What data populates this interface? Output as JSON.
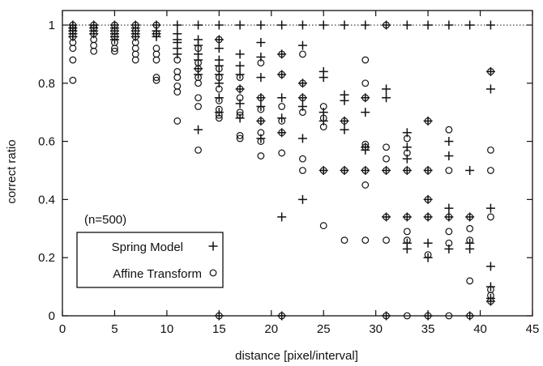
{
  "chart_data": {
    "type": "scatter",
    "xlabel": "distance [pixel/interval]",
    "ylabel": "correct ratio",
    "xlim": [
      0,
      45
    ],
    "ylim": [
      0,
      1.05
    ],
    "xticks": [
      0,
      5,
      10,
      15,
      20,
      25,
      30,
      35,
      40,
      45
    ],
    "yticks": [
      0,
      0.2,
      0.4,
      0.6,
      0.8,
      1
    ],
    "grid": false,
    "reference_line": {
      "y": 1,
      "style": "dotted"
    },
    "annotation": "(n=500)",
    "legend_position": "bottom-left",
    "series": [
      {
        "name": "Spring Model",
        "marker": "plus",
        "points": [
          [
            1,
            1
          ],
          [
            1,
            0.99
          ],
          [
            1,
            0.98
          ],
          [
            1,
            0.97
          ],
          [
            1,
            0.96
          ],
          [
            3,
            1
          ],
          [
            3,
            0.99
          ],
          [
            3,
            0.98
          ],
          [
            3,
            0.97
          ],
          [
            5,
            1
          ],
          [
            5,
            0.99
          ],
          [
            5,
            0.98
          ],
          [
            5,
            0.97
          ],
          [
            5,
            0.96
          ],
          [
            5,
            0.95
          ],
          [
            7,
            1
          ],
          [
            7,
            0.99
          ],
          [
            7,
            0.98
          ],
          [
            7,
            0.97
          ],
          [
            7,
            0.96
          ],
          [
            9,
            1
          ],
          [
            9,
            0.98
          ],
          [
            9,
            0.97
          ],
          [
            9,
            0.96
          ],
          [
            11,
            1
          ],
          [
            11,
            0.97
          ],
          [
            11,
            0.95
          ],
          [
            11,
            0.94
          ],
          [
            11,
            0.92
          ],
          [
            11,
            0.9
          ],
          [
            13,
            1
          ],
          [
            13,
            0.95
          ],
          [
            13,
            0.93
          ],
          [
            13,
            0.9
          ],
          [
            13,
            0.88
          ],
          [
            13,
            0.85
          ],
          [
            13,
            0.83
          ],
          [
            13,
            0.64
          ],
          [
            15,
            1
          ],
          [
            15,
            0.95
          ],
          [
            15,
            0.92
          ],
          [
            15,
            0.88
          ],
          [
            15,
            0.86
          ],
          [
            15,
            0.83
          ],
          [
            15,
            0.8
          ],
          [
            15,
            0.75
          ],
          [
            15,
            0.7
          ],
          [
            15,
            0
          ],
          [
            17,
            1
          ],
          [
            17,
            0.9
          ],
          [
            17,
            0.86
          ],
          [
            17,
            0.83
          ],
          [
            17,
            0.78
          ],
          [
            17,
            0.73
          ],
          [
            17,
            0.68
          ],
          [
            19,
            1
          ],
          [
            19,
            0.94
          ],
          [
            19,
            0.89
          ],
          [
            19,
            0.82
          ],
          [
            19,
            0.75
          ],
          [
            19,
            0.72
          ],
          [
            19,
            0.67
          ],
          [
            19,
            0.61
          ],
          [
            21,
            1
          ],
          [
            21,
            0.9
          ],
          [
            21,
            0.83
          ],
          [
            21,
            0.75
          ],
          [
            21,
            0.68
          ],
          [
            21,
            0.63
          ],
          [
            21,
            0.34
          ],
          [
            21,
            0
          ],
          [
            23,
            1
          ],
          [
            23,
            0.93
          ],
          [
            23,
            0.8
          ],
          [
            23,
            0.75
          ],
          [
            23,
            0.72
          ],
          [
            23,
            0.61
          ],
          [
            23,
            0.4
          ],
          [
            25,
            1
          ],
          [
            25,
            0.84
          ],
          [
            25,
            0.82
          ],
          [
            25,
            0.7
          ],
          [
            25,
            0.67
          ],
          [
            25,
            0.5
          ],
          [
            27,
            1
          ],
          [
            27,
            0.76
          ],
          [
            27,
            0.74
          ],
          [
            27,
            0.67
          ],
          [
            27,
            0.64
          ],
          [
            27,
            0.5
          ],
          [
            29,
            1
          ],
          [
            29,
            0.75
          ],
          [
            29,
            0.7
          ],
          [
            29,
            0.58
          ],
          [
            29,
            0.57
          ],
          [
            29,
            0.5
          ],
          [
            31,
            1
          ],
          [
            31,
            0.78
          ],
          [
            31,
            0.75
          ],
          [
            31,
            0.5
          ],
          [
            31,
            0.34
          ],
          [
            31,
            0
          ],
          [
            33,
            1
          ],
          [
            33,
            0.63
          ],
          [
            33,
            0.58
          ],
          [
            33,
            0.54
          ],
          [
            33,
            0.5
          ],
          [
            33,
            0.34
          ],
          [
            33,
            0.25
          ],
          [
            33,
            0.23
          ],
          [
            35,
            1
          ],
          [
            35,
            0.67
          ],
          [
            35,
            0.5
          ],
          [
            35,
            0.4
          ],
          [
            35,
            0.34
          ],
          [
            35,
            0.25
          ],
          [
            35,
            0.2
          ],
          [
            35,
            0
          ],
          [
            37,
            1
          ],
          [
            37,
            0.6
          ],
          [
            37,
            0.55
          ],
          [
            37,
            0.37
          ],
          [
            37,
            0.34
          ],
          [
            37,
            0.23
          ],
          [
            39,
            1
          ],
          [
            39,
            0.5
          ],
          [
            39,
            0.34
          ],
          [
            39,
            0.25
          ],
          [
            39,
            0.23
          ],
          [
            39,
            0
          ],
          [
            41,
            1
          ],
          [
            41,
            0.84
          ],
          [
            41,
            0.78
          ],
          [
            41,
            0.37
          ],
          [
            41,
            0.17
          ],
          [
            41,
            0.1
          ],
          [
            41,
            0.06
          ],
          [
            41,
            0.05
          ]
        ]
      },
      {
        "name": "Affine Transform",
        "marker": "circle",
        "points": [
          [
            1,
            1
          ],
          [
            1,
            0.99
          ],
          [
            1,
            0.98
          ],
          [
            1,
            0.96
          ],
          [
            1,
            0.94
          ],
          [
            1,
            0.92
          ],
          [
            1,
            0.88
          ],
          [
            1,
            0.81
          ],
          [
            3,
            1
          ],
          [
            3,
            0.99
          ],
          [
            3,
            0.97
          ],
          [
            3,
            0.95
          ],
          [
            3,
            0.93
          ],
          [
            3,
            0.91
          ],
          [
            5,
            1
          ],
          [
            5,
            0.98
          ],
          [
            5,
            0.96
          ],
          [
            5,
            0.94
          ],
          [
            5,
            0.92
          ],
          [
            5,
            0.91
          ],
          [
            7,
            1
          ],
          [
            7,
            0.98
          ],
          [
            7,
            0.96
          ],
          [
            7,
            0.94
          ],
          [
            7,
            0.92
          ],
          [
            7,
            0.9
          ],
          [
            7,
            0.88
          ],
          [
            9,
            1
          ],
          [
            9,
            0.97
          ],
          [
            9,
            0.92
          ],
          [
            9,
            0.9
          ],
          [
            9,
            0.88
          ],
          [
            9,
            0.82
          ],
          [
            9,
            0.81
          ],
          [
            11,
            0.88
          ],
          [
            11,
            0.84
          ],
          [
            11,
            0.82
          ],
          [
            11,
            0.79
          ],
          [
            11,
            0.77
          ],
          [
            11,
            0.67
          ],
          [
            13,
            0.92
          ],
          [
            13,
            0.87
          ],
          [
            13,
            0.85
          ],
          [
            13,
            0.82
          ],
          [
            13,
            0.8
          ],
          [
            13,
            0.75
          ],
          [
            13,
            0.72
          ],
          [
            13,
            0.57
          ],
          [
            15,
            0.95
          ],
          [
            15,
            0.85
          ],
          [
            15,
            0.82
          ],
          [
            15,
            0.78
          ],
          [
            15,
            0.74
          ],
          [
            15,
            0.71
          ],
          [
            15,
            0.69
          ],
          [
            15,
            0.68
          ],
          [
            15,
            0
          ],
          [
            17,
            0.82
          ],
          [
            17,
            0.78
          ],
          [
            17,
            0.75
          ],
          [
            17,
            0.7
          ],
          [
            17,
            0.69
          ],
          [
            17,
            0.62
          ],
          [
            17,
            0.61
          ],
          [
            19,
            0.87
          ],
          [
            19,
            0.75
          ],
          [
            19,
            0.71
          ],
          [
            19,
            0.67
          ],
          [
            19,
            0.63
          ],
          [
            19,
            0.6
          ],
          [
            19,
            0.55
          ],
          [
            21,
            0.9
          ],
          [
            21,
            0.83
          ],
          [
            21,
            0.72
          ],
          [
            21,
            0.67
          ],
          [
            21,
            0.63
          ],
          [
            21,
            0.56
          ],
          [
            21,
            0
          ],
          [
            23,
            0.9
          ],
          [
            23,
            0.8
          ],
          [
            23,
            0.75
          ],
          [
            23,
            0.7
          ],
          [
            23,
            0.54
          ],
          [
            23,
            0.5
          ],
          [
            25,
            0.72
          ],
          [
            25,
            0.68
          ],
          [
            25,
            0.65
          ],
          [
            25,
            0.5
          ],
          [
            25,
            0.31
          ],
          [
            27,
            0.67
          ],
          [
            27,
            0.5
          ],
          [
            27,
            0.26
          ],
          [
            29,
            0.88
          ],
          [
            29,
            0.8
          ],
          [
            29,
            0.75
          ],
          [
            29,
            0.59
          ],
          [
            29,
            0.58
          ],
          [
            29,
            0.5
          ],
          [
            29,
            0.45
          ],
          [
            29,
            0.26
          ],
          [
            31,
            1
          ],
          [
            31,
            0.58
          ],
          [
            31,
            0.54
          ],
          [
            31,
            0.5
          ],
          [
            31,
            0.34
          ],
          [
            31,
            0.26
          ],
          [
            31,
            0
          ],
          [
            33,
            0.61
          ],
          [
            33,
            0.56
          ],
          [
            33,
            0.5
          ],
          [
            33,
            0.34
          ],
          [
            33,
            0.29
          ],
          [
            33,
            0.26
          ],
          [
            33,
            0
          ],
          [
            35,
            0.67
          ],
          [
            35,
            0.5
          ],
          [
            35,
            0.4
          ],
          [
            35,
            0.34
          ],
          [
            35,
            0.21
          ],
          [
            35,
            0
          ],
          [
            37,
            0.64
          ],
          [
            37,
            0.5
          ],
          [
            37,
            0.34
          ],
          [
            37,
            0.29
          ],
          [
            37,
            0.25
          ],
          [
            37,
            0
          ],
          [
            39,
            0.34
          ],
          [
            39,
            0.3
          ],
          [
            39,
            0.26
          ],
          [
            39,
            0.12
          ],
          [
            39,
            0
          ],
          [
            41,
            0.84
          ],
          [
            41,
            0.57
          ],
          [
            41,
            0.5
          ],
          [
            41,
            0.34
          ],
          [
            41,
            0.09
          ],
          [
            41,
            0.07
          ],
          [
            41,
            0.05
          ]
        ]
      }
    ]
  }
}
